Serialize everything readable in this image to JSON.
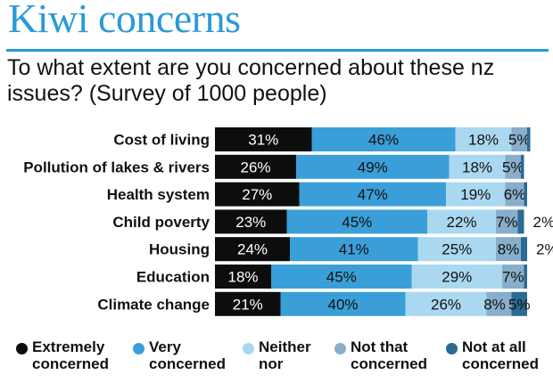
{
  "title": "Kiwi concerns",
  "subtitle": "To what extent are you concerned about these nz issues? (Survey of 1000 people)",
  "colors": {
    "accent": "#2a9ad8",
    "extremely": "#0d0d0d",
    "very": "#3a9fd8",
    "neither": "#aad8f0",
    "not_that": "#88aecb",
    "not_at_all": "#2b6a93"
  },
  "chart_data": {
    "type": "bar",
    "orientation": "horizontal",
    "stacked": true,
    "categories": [
      "Cost of living",
      "Pollution of lakes & rivers",
      "Health system",
      "Child poverty",
      "Housing",
      "Education",
      "Climate change"
    ],
    "series": [
      {
        "name": "Extremely concerned",
        "values": [
          31,
          26,
          27,
          23,
          24,
          18,
          21
        ],
        "labels": [
          "31%",
          "26%",
          "27%",
          "23%",
          "24%",
          "18%",
          "21%"
        ]
      },
      {
        "name": "Very concerned",
        "values": [
          46,
          49,
          47,
          45,
          41,
          45,
          40
        ],
        "labels": [
          "46%",
          "49%",
          "47%",
          "45%",
          "41%",
          "45%",
          "40%"
        ]
      },
      {
        "name": "Neither nor",
        "values": [
          18,
          18,
          19,
          22,
          25,
          29,
          26
        ],
        "labels": [
          "18%",
          "18%",
          "19%",
          "22%",
          "25%",
          "29%",
          "26%"
        ]
      },
      {
        "name": "Not that concerned",
        "values": [
          5,
          5,
          6,
          7,
          8,
          7,
          8
        ],
        "labels": [
          "5%",
          "5%",
          "6%",
          "7%",
          "8%",
          "7%",
          "8%"
        ]
      },
      {
        "name": "Not at all concerned",
        "values": [
          1,
          1,
          1,
          2,
          2,
          1,
          5
        ],
        "labels": [
          "",
          "",
          "",
          "2%",
          "2%",
          "",
          "5%"
        ]
      }
    ],
    "xlim": [
      0,
      100
    ],
    "legend_position": "bottom"
  },
  "legend": [
    {
      "text": "Extremely\nconcerned",
      "color_key": "extremely"
    },
    {
      "text": "Very\nconcerned",
      "color_key": "very"
    },
    {
      "text": "Neither\nnor",
      "color_key": "neither"
    },
    {
      "text": "Not that\nconcerned",
      "color_key": "not_that"
    },
    {
      "text": "Not at all\nconcerned",
      "color_key": "not_at_all"
    }
  ]
}
